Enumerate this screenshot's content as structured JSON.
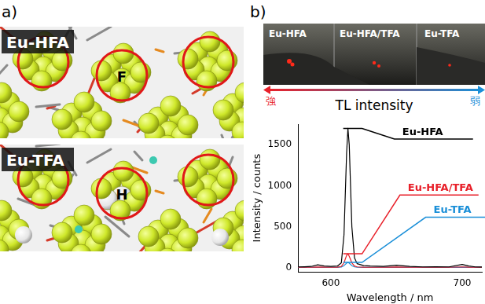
{
  "panel_a": {
    "label": "a)",
    "images": [
      {
        "label": "Eu-HFA",
        "atom": "F"
      },
      {
        "label": "Eu-TFA",
        "atom": "H"
      }
    ]
  },
  "panel_b": {
    "label": "b)",
    "photo": {
      "labels": [
        "Eu-HFA",
        "Eu-HFA/TFA",
        "Eu-TFA"
      ]
    },
    "scale": {
      "strong": "強",
      "weak": "弱",
      "title": "TL intensity"
    }
  },
  "chart_data": {
    "type": "line",
    "x_label": "Wavelength / nm",
    "y_label": "Intensity / counts",
    "x": [
      575,
      580,
      585,
      590,
      595,
      600,
      605,
      608,
      610,
      612,
      613,
      614,
      616,
      618,
      620,
      625,
      630,
      640,
      650,
      660,
      670,
      680,
      690,
      700,
      705,
      710,
      715
    ],
    "series": [
      {
        "name": "Eu-HFA",
        "color": "#000000",
        "values": [
          10,
          12,
          15,
          35,
          20,
          15,
          20,
          60,
          400,
          1400,
          1700,
          1500,
          500,
          120,
          50,
          25,
          20,
          15,
          30,
          15,
          10,
          12,
          10,
          40,
          20,
          10,
          8
        ]
      },
      {
        "name": "Eu-HFA/TFA",
        "color": "#e8202a",
        "values": [
          5,
          5,
          5,
          8,
          6,
          5,
          6,
          15,
          60,
          150,
          170,
          140,
          60,
          20,
          10,
          6,
          5,
          5,
          8,
          5,
          5,
          5,
          5,
          10,
          6,
          5,
          5
        ]
      },
      {
        "name": "Eu-TFA",
        "color": "#1a8fd8",
        "values": [
          3,
          3,
          3,
          5,
          4,
          3,
          4,
          8,
          25,
          55,
          65,
          55,
          25,
          10,
          5,
          4,
          3,
          3,
          5,
          3,
          3,
          3,
          3,
          6,
          4,
          3,
          3
        ]
      }
    ],
    "xlim": [
      575,
      715
    ],
    "xticks": [
      600,
      700
    ],
    "ylim": [
      -50,
      1750
    ],
    "yticks": [
      0,
      500,
      1000,
      1500
    ],
    "grid": false
  }
}
